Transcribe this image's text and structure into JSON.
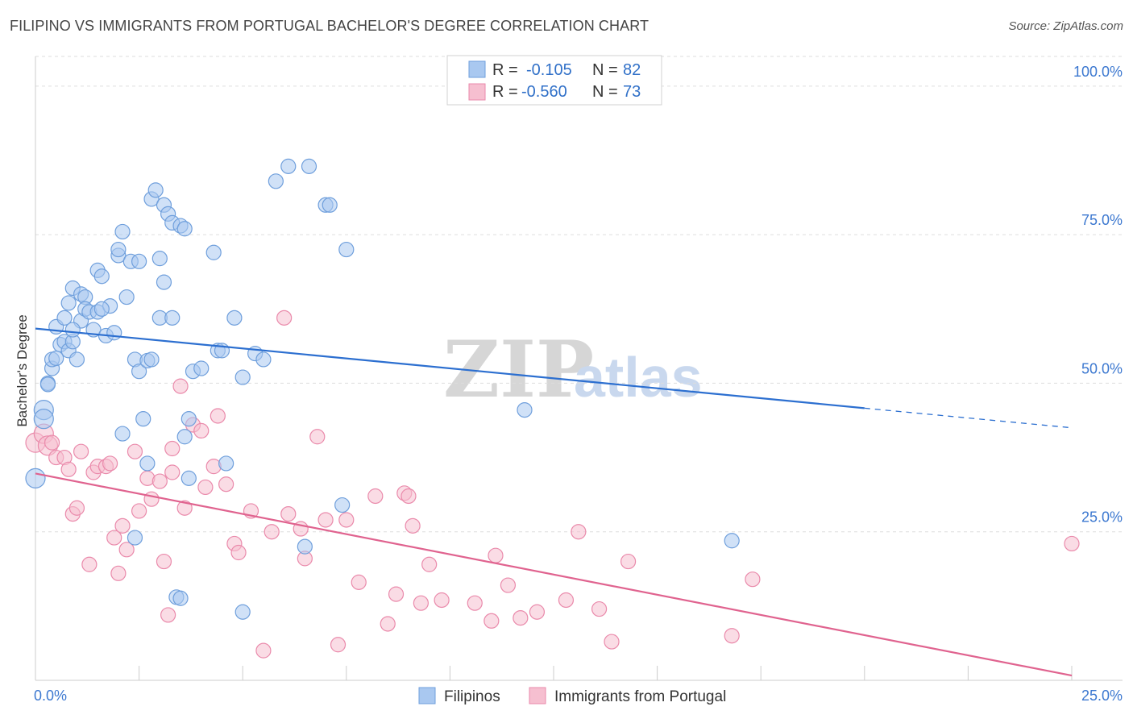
{
  "header": {
    "title": "FILIPINO VS IMMIGRANTS FROM PORTUGAL BACHELOR'S DEGREE CORRELATION CHART",
    "source": "Source: ZipAtlas.com"
  },
  "watermark": {
    "zip": "ZIP",
    "atlas": "atlas"
  },
  "colors": {
    "blue_fill": "#a9c8f0",
    "blue_stroke": "#6f9fdc",
    "blue_line": "#2c6fd0",
    "pink_fill": "#f6bfd0",
    "pink_stroke": "#ea8aab",
    "pink_line": "#e0638f",
    "tick_label": "#3c78d0",
    "grid": "#dddddd"
  },
  "legend": {
    "rows": [
      {
        "r_label": "R =",
        "r_value": "-0.105",
        "n_label": "N =",
        "n_value": "82"
      },
      {
        "r_label": "R =",
        "r_value": "-0.560",
        "n_label": "N =",
        "n_value": "73"
      }
    ]
  },
  "bottom_legend": {
    "items": [
      "Filipinos",
      "Immigrants from Portugal"
    ]
  },
  "chart_data": {
    "type": "scatter",
    "title": "FILIPINO VS IMMIGRANTS FROM PORTUGAL BACHELOR'S DEGREE CORRELATION CHART",
    "xlabel": "",
    "ylabel": "Bachelor's Degree",
    "xlim": [
      0,
      25
    ],
    "ylim": [
      0,
      105
    ],
    "x_tick_labels": [
      "0.0%",
      "25.0%"
    ],
    "y_ticks": [
      25,
      50,
      75,
      100
    ],
    "y_tick_labels": [
      "25.0%",
      "50.0%",
      "75.0%",
      "100.0%"
    ],
    "grid": true,
    "series": [
      {
        "name": "Filipinos",
        "r": -0.105,
        "n": 82,
        "trend": {
          "x0": 0,
          "y0": 59.2,
          "x1": 20,
          "y1": 45.8,
          "dash_to_x": 25,
          "dash_to_y": 42.5
        },
        "points": [
          [
            0.0,
            34.0
          ],
          [
            0.2,
            45.5
          ],
          [
            0.2,
            44.0
          ],
          [
            0.3,
            50.0
          ],
          [
            0.3,
            49.8
          ],
          [
            0.4,
            52.5
          ],
          [
            0.4,
            54.0
          ],
          [
            0.5,
            54.2
          ],
          [
            0.5,
            59.5
          ],
          [
            0.6,
            56.5
          ],
          [
            0.7,
            57.0
          ],
          [
            0.7,
            61.0
          ],
          [
            0.8,
            55.5
          ],
          [
            0.8,
            63.5
          ],
          [
            0.9,
            57.0
          ],
          [
            0.9,
            66.0
          ],
          [
            1.0,
            54.0
          ],
          [
            1.1,
            60.5
          ],
          [
            1.1,
            65.0
          ],
          [
            1.2,
            64.5
          ],
          [
            1.2,
            62.5
          ],
          [
            1.3,
            62.0
          ],
          [
            1.4,
            59.0
          ],
          [
            1.5,
            62.0
          ],
          [
            1.5,
            69.0
          ],
          [
            1.6,
            68.0
          ],
          [
            1.7,
            58.0
          ],
          [
            1.8,
            63.0
          ],
          [
            1.9,
            58.5
          ],
          [
            2.0,
            71.5
          ],
          [
            2.0,
            72.5
          ],
          [
            2.1,
            75.5
          ],
          [
            2.2,
            64.5
          ],
          [
            2.3,
            70.5
          ],
          [
            2.4,
            54.0
          ],
          [
            2.5,
            70.5
          ],
          [
            2.5,
            52.0
          ],
          [
            2.7,
            53.8
          ],
          [
            2.8,
            81.0
          ],
          [
            2.9,
            82.5
          ],
          [
            3.0,
            71.0
          ],
          [
            3.0,
            61.0
          ],
          [
            3.1,
            80.0
          ],
          [
            3.1,
            67.0
          ],
          [
            3.2,
            78.5
          ],
          [
            3.3,
            77.0
          ],
          [
            3.3,
            61.0
          ],
          [
            3.5,
            76.5
          ],
          [
            3.6,
            76.0
          ],
          [
            3.7,
            44.0
          ],
          [
            3.8,
            52.0
          ],
          [
            4.0,
            52.5
          ],
          [
            4.3,
            72.0
          ],
          [
            4.4,
            55.5
          ],
          [
            4.8,
            61.0
          ],
          [
            5.0,
            51.0
          ],
          [
            5.3,
            55.0
          ],
          [
            5.5,
            54.0
          ],
          [
            5.8,
            84.0
          ],
          [
            6.1,
            86.5
          ],
          [
            6.6,
            86.5
          ],
          [
            7.0,
            80.0
          ],
          [
            7.1,
            80.0
          ],
          [
            7.5,
            72.5
          ],
          [
            11.8,
            45.5
          ],
          [
            16.8,
            23.5
          ],
          [
            2.1,
            41.5
          ],
          [
            2.6,
            44.0
          ],
          [
            2.7,
            36.5
          ],
          [
            3.6,
            41.0
          ],
          [
            3.7,
            34.0
          ],
          [
            4.6,
            36.5
          ],
          [
            7.4,
            29.5
          ],
          [
            6.5,
            22.5
          ],
          [
            2.4,
            24.0
          ],
          [
            3.4,
            14.0
          ],
          [
            3.5,
            13.8
          ],
          [
            5.0,
            11.5
          ],
          [
            4.5,
            55.5
          ],
          [
            2.8,
            54.0
          ],
          [
            1.6,
            62.5
          ],
          [
            0.9,
            59.0
          ]
        ]
      },
      {
        "name": "Immigrants from Portugal",
        "r": -0.56,
        "n": 73,
        "trend": {
          "x0": 0,
          "y0": 34.8,
          "x1": 25,
          "y1": 0.8
        },
        "points": [
          [
            0.0,
            40.0
          ],
          [
            0.2,
            41.5
          ],
          [
            0.3,
            39.5
          ],
          [
            0.4,
            40.0
          ],
          [
            0.5,
            37.5
          ],
          [
            0.7,
            37.5
          ],
          [
            0.8,
            35.5
          ],
          [
            0.9,
            28.0
          ],
          [
            1.0,
            29.0
          ],
          [
            1.1,
            38.5
          ],
          [
            1.3,
            19.5
          ],
          [
            1.4,
            35.0
          ],
          [
            1.5,
            36.0
          ],
          [
            1.7,
            36.0
          ],
          [
            1.8,
            36.5
          ],
          [
            1.9,
            24.0
          ],
          [
            2.0,
            18.0
          ],
          [
            2.1,
            26.0
          ],
          [
            2.2,
            22.0
          ],
          [
            2.4,
            38.5
          ],
          [
            2.5,
            28.5
          ],
          [
            2.7,
            34.0
          ],
          [
            2.8,
            30.5
          ],
          [
            3.0,
            33.5
          ],
          [
            3.1,
            20.0
          ],
          [
            3.2,
            11.0
          ],
          [
            3.3,
            39.0
          ],
          [
            3.5,
            49.5
          ],
          [
            3.6,
            29.0
          ],
          [
            3.8,
            43.0
          ],
          [
            4.0,
            42.0
          ],
          [
            4.1,
            32.5
          ],
          [
            4.3,
            36.0
          ],
          [
            4.4,
            44.5
          ],
          [
            4.6,
            33.0
          ],
          [
            4.8,
            23.0
          ],
          [
            4.9,
            21.5
          ],
          [
            5.2,
            28.5
          ],
          [
            5.5,
            5.0
          ],
          [
            5.7,
            25.0
          ],
          [
            6.0,
            61.0
          ],
          [
            6.1,
            28.0
          ],
          [
            6.4,
            25.5
          ],
          [
            6.5,
            20.5
          ],
          [
            6.8,
            41.0
          ],
          [
            7.0,
            27.0
          ],
          [
            7.3,
            6.0
          ],
          [
            7.5,
            27.0
          ],
          [
            7.8,
            16.5
          ],
          [
            8.2,
            31.0
          ],
          [
            8.5,
            9.5
          ],
          [
            8.7,
            14.5
          ],
          [
            8.9,
            31.5
          ],
          [
            9.1,
            26.0
          ],
          [
            9.3,
            13.0
          ],
          [
            9.5,
            19.5
          ],
          [
            9.8,
            13.5
          ],
          [
            10.6,
            13.0
          ],
          [
            11.0,
            10.0
          ],
          [
            11.1,
            21.0
          ],
          [
            11.4,
            16.0
          ],
          [
            11.7,
            10.5
          ],
          [
            12.1,
            11.5
          ],
          [
            12.8,
            13.5
          ],
          [
            13.1,
            25.0
          ],
          [
            13.6,
            12.0
          ],
          [
            13.9,
            6.5
          ],
          [
            14.3,
            20.0
          ],
          [
            16.8,
            7.5
          ],
          [
            17.3,
            17.0
          ],
          [
            25.0,
            23.0
          ],
          [
            9.0,
            31.0
          ],
          [
            3.3,
            35.0
          ]
        ]
      }
    ]
  }
}
